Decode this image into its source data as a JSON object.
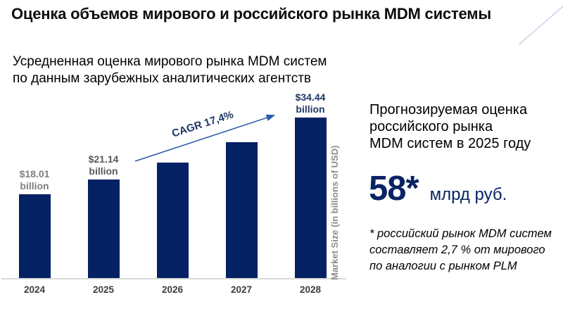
{
  "slide": {
    "title": "Оценка объемов мирового и российского рынка MDM системы",
    "subtitle": "Усредненная оценка мирового рынка MDM систем\nпо данным зарубежных аналитических агентств"
  },
  "chart_data": {
    "type": "bar",
    "title": "Усредненная оценка мирового рынка MDM систем по данным зарубежных аналитических агентств",
    "categories": [
      "2024",
      "2025",
      "2026",
      "2027",
      "2028"
    ],
    "values": [
      18.01,
      21.14,
      24.8,
      29.1,
      34.44
    ],
    "unit": "billions of USD",
    "xlabel": "",
    "ylabel": "Market Size (in billions of USD)",
    "ylim": [
      0,
      40
    ],
    "grid": false,
    "legend": "none",
    "bar_color": "#042163",
    "x_tick_color": "#3d3d3d",
    "bar_labels": [
      {
        "text": "$18.01\nbillion",
        "color": "#7f7f7f"
      },
      {
        "text": "$21.14\nbillion",
        "color": "#595959"
      },
      null,
      null,
      {
        "text": "$34.44\nbillion",
        "color": "#1f3864"
      }
    ],
    "annotation": {
      "text": "CAGR 17,4%",
      "color": "#1f3864",
      "arrow_color": "#2e5aa8"
    }
  },
  "right_panel": {
    "heading": "Прогнозируемая оценка\nроссийского рынка\nMDM систем в 2025 году",
    "value": "58*",
    "value_unit": "млрд руб.",
    "accent_color": "#0a2463",
    "footnote": "* российский рынок MDM систем\nсоставляет 2,7 % от мирового\nпо аналогии с рынком PLM"
  }
}
